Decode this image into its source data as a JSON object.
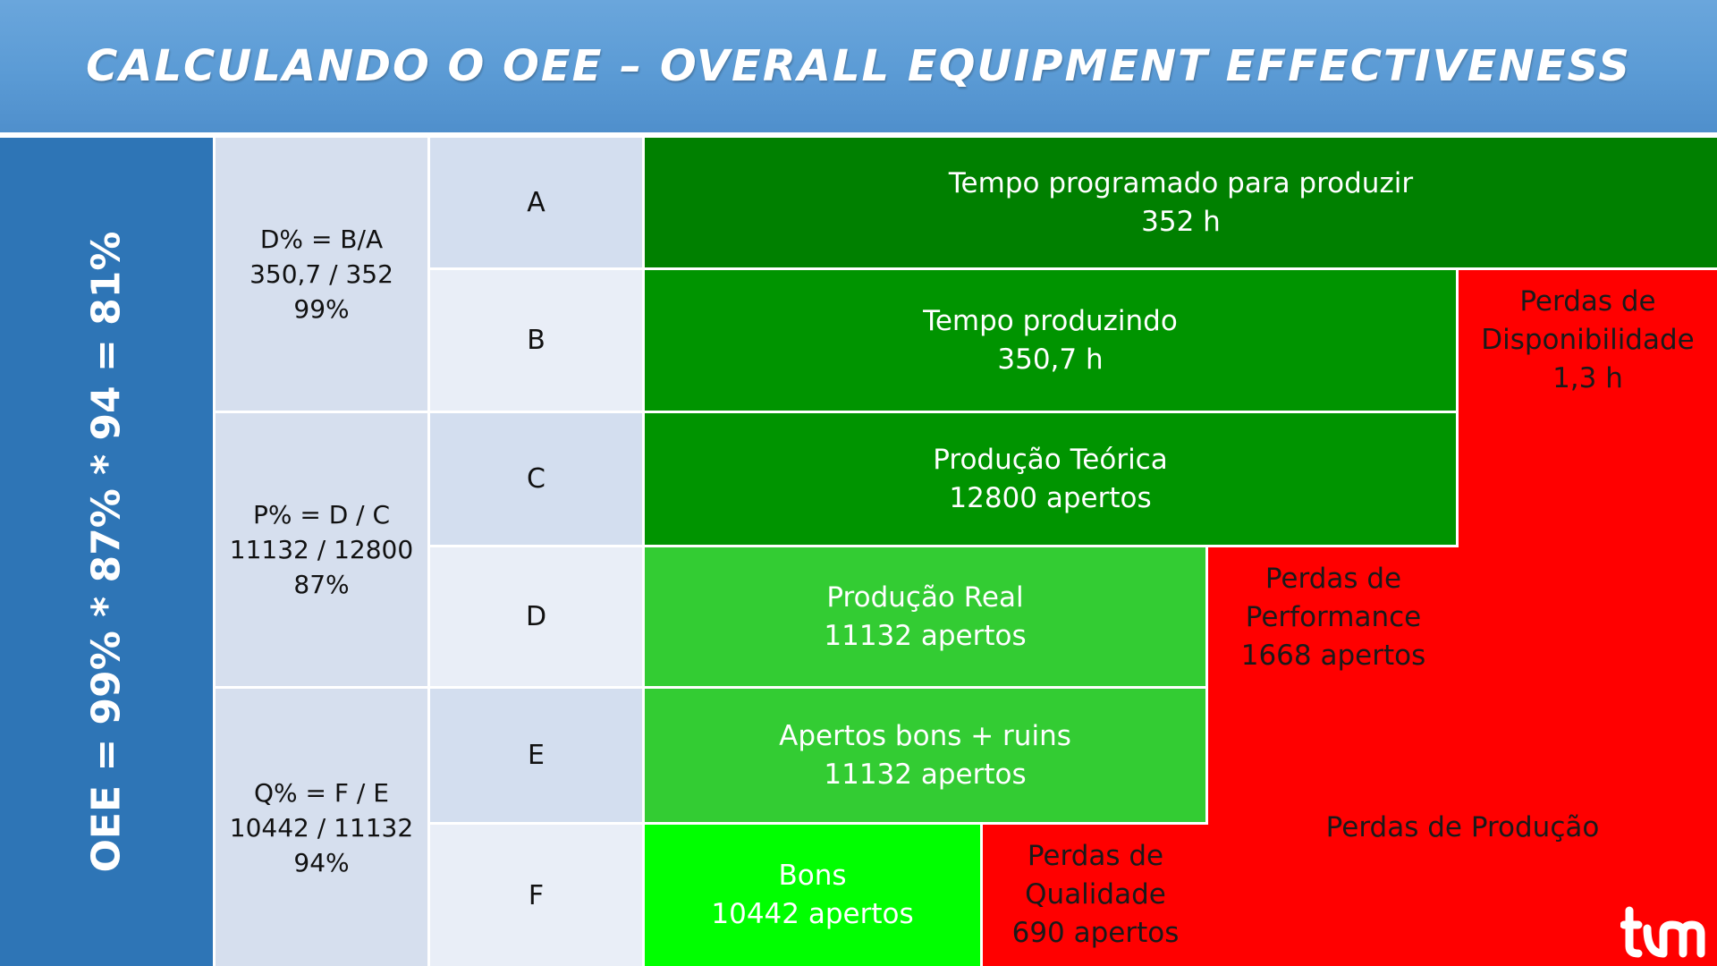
{
  "header": {
    "title": "CALCULANDO O OEE – OVERALL EQUIPMENT EFFECTIVENESS"
  },
  "oee": {
    "formula": "OEE = 99% * 87% * 94 = 81%"
  },
  "metrics": [
    {
      "formula": "D% = B/A\n350,7 / 352\n99%"
    },
    {
      "formula": "P% = D / C\n11132 / 12800\n87%"
    },
    {
      "formula": "Q% = F / E\n10442 / 11132\n94%"
    }
  ],
  "rows": [
    "A",
    "B",
    "C",
    "D",
    "E",
    "F"
  ],
  "blocks": {
    "a": {
      "text": "Tempo programado para produzir\n352 h",
      "color": "#008000"
    },
    "b": {
      "text": "Tempo produzindo\n350,7 h",
      "color": "#009400"
    },
    "c": {
      "text": "Produção Teórica\n12800 apertos",
      "color": "#009400"
    },
    "d": {
      "text": "Produção Real\n11132 apertos",
      "color": "#33cc33"
    },
    "e": {
      "text": "Apertos bons + ruins\n11132 apertos",
      "color": "#33cc33"
    },
    "f": {
      "text": "Bons\n10442 apertos",
      "color": "#00ff00"
    }
  },
  "losses": {
    "availability": "Perdas de\nDisponibilidade\n1,3 h",
    "performance": "Perdas de\nPerformance\n1668 apertos",
    "quality": "Perdas de\nQualidade\n690 apertos",
    "production": "Perdas de Produção",
    "color": "#ff0000"
  },
  "logo": {
    "icon": "company-logo-icon"
  }
}
